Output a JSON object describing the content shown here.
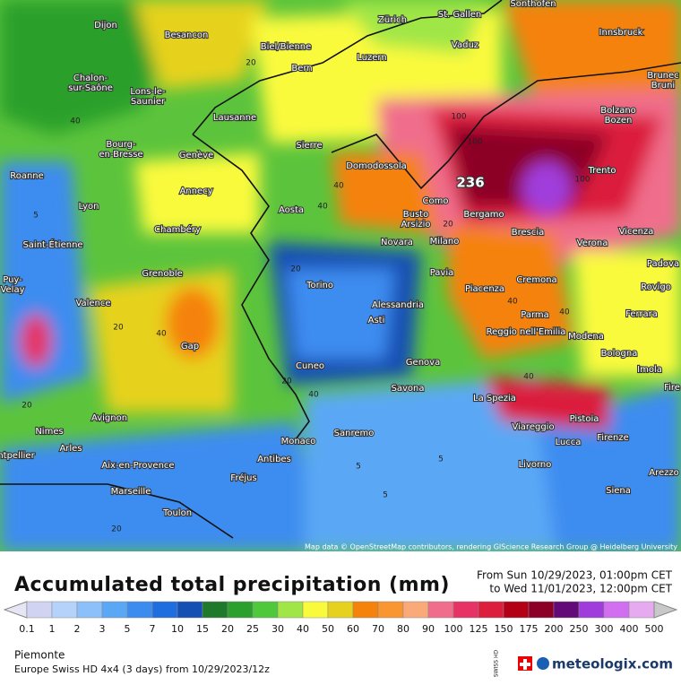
{
  "map": {
    "peak": "236",
    "attribution": "Map data © OpenStreetMap contributors, rendering GIScience Research Group @ Heidelberg University",
    "cities": [
      "Dijon",
      "Besancon",
      "Biel/Bienne",
      "Bern",
      "Zürich",
      "St. Gallen",
      "Sonthofen",
      "Innsbruck",
      "Vaduz",
      "Luzern",
      [
        "Chalon-",
        "sur-Saône"
      ],
      [
        "Lons-le-",
        "Saunier"
      ],
      "Lausanne",
      [
        "Bolzano",
        "Bozen"
      ],
      [
        "Brunec",
        "Bruni"
      ],
      [
        "Bourg-",
        "en-Bresse"
      ],
      "Genève",
      "Sierre",
      "Domodossola",
      "Trento",
      "Roanne",
      "Annecy",
      "Lyon",
      "Aosta",
      "Como",
      [
        "Busto",
        "Arsizio"
      ],
      "Bergamo",
      "Chambéry",
      "Saint-Étienne",
      "Novara",
      "Milano",
      "Brescia",
      "Verona",
      "Vicenza",
      "Padova",
      "Grenoble",
      [
        "Puy-",
        "Velay"
      ],
      "Pavia",
      "Cremona",
      "Torino",
      "Piacenza",
      "Rovigo",
      "Valence",
      "Alessandria",
      "Parma",
      "Ferrara",
      "Asti",
      "Reggio nell'Emilia",
      "Modena",
      "Gap",
      "Bologna",
      "Genova",
      "Cuneo",
      "Imola",
      "Savona",
      "La Spezia",
      "Avignon",
      "Pistoia",
      "Viareggio",
      "Nimes",
      "Monaco",
      "Sanremo",
      "Firenze",
      "Lucca",
      "Arles",
      "Antibes",
      "Livorno",
      "ntpellier",
      "Aix-en-Provence",
      "Fréjus",
      "Arezzo",
      "Siena",
      "Marseille",
      "Toulon",
      "Fire"
    ],
    "contour_labels": [
      "40",
      "20",
      "5",
      "40",
      "20",
      "40",
      "100",
      "100",
      "100",
      "40",
      "20",
      "40",
      "20",
      "20",
      "5",
      "5",
      "5",
      "20",
      "40",
      "40",
      "40",
      "20"
    ]
  },
  "footer": {
    "title": "Accumulated total precipitation (mm)",
    "from": "From Sun 10/29/2023, 01:00pm CET",
    "to": "to Wed 11/01/2023, 12:00pm CET",
    "region": "Piemonte",
    "model": "Europe Swiss HD 4x4 (3 days) from 10/29/2023/12z",
    "brand": "meteologix.com",
    "badge": "SWISS HD"
  },
  "legend": {
    "ticks": [
      0.1,
      1,
      2,
      3,
      5,
      7,
      10,
      15,
      20,
      25,
      30,
      40,
      50,
      60,
      70,
      80,
      90,
      100,
      125,
      150,
      175,
      200,
      250,
      300,
      400,
      500
    ],
    "colors": [
      "#e6e6f5",
      "#d0d4f2",
      "#b4d2fa",
      "#8cc0fa",
      "#5aa8f5",
      "#3c8cf0",
      "#1e6ee0",
      "#1450b4",
      "#1e7a2a",
      "#2ca02c",
      "#50c83c",
      "#a0e646",
      "#fafa3c",
      "#e6d21e",
      "#f5820a",
      "#fa9632",
      "#faaa78",
      "#f06e8c",
      "#e63264",
      "#dc1e3c",
      "#b40014",
      "#8c0028",
      "#640a78",
      "#a03cdc",
      "#d26ef0",
      "#e6aaf0",
      "#c8c8c8"
    ]
  }
}
